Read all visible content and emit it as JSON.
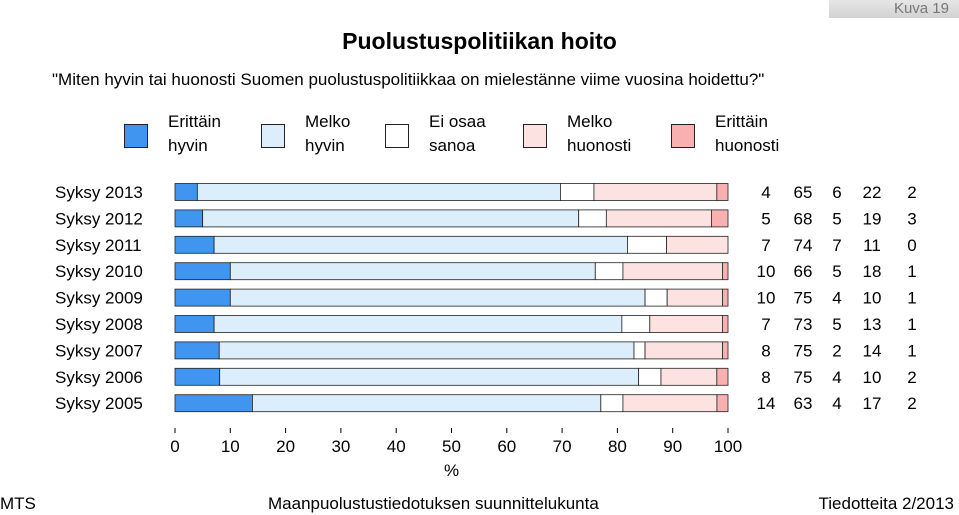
{
  "figure_label": "Kuva 19",
  "title": "Puolustuspolitiikan hoito",
  "question": "\"Miten hyvin tai huonosti Suomen puolustuspolitiikkaa on mielestänne viime vuosina hoidettu?\"",
  "legend": [
    {
      "line1": "Erittäin",
      "line2": "hyvin",
      "color": "#3f95f0"
    },
    {
      "line1": "Melko",
      "line2": "hyvin",
      "color": "#dcedfb"
    },
    {
      "line1": "Ei osaa",
      "line2": "sanoa",
      "color": "#ffffff"
    },
    {
      "line1": "Melko",
      "line2": "huonosti",
      "color": "#fde2e2"
    },
    {
      "line1": "Erittäin",
      "line2": "huonosti",
      "color": "#f8b0b0"
    }
  ],
  "footer": {
    "left": "MTS",
    "center": "Maanpuolustustiedotuksen suunnittelukunta",
    "right": "Tiedotteita 2/2013"
  },
  "chart_data": {
    "type": "bar",
    "orientation": "horizontal",
    "stacked": true,
    "categories": [
      "Syksy 2013",
      "Syksy 2012",
      "Syksy 2011",
      "Syksy 2010",
      "Syksy 2009",
      "Syksy 2008",
      "Syksy 2007",
      "Syksy 2006",
      "Syksy 2005"
    ],
    "series": [
      {
        "name": "Erittäin hyvin",
        "color": "#3f95f0",
        "values": [
          4,
          5,
          7,
          10,
          10,
          7,
          8,
          8,
          14
        ]
      },
      {
        "name": "Melko hyvin",
        "color": "#dcedfb",
        "values": [
          65,
          68,
          74,
          66,
          75,
          73,
          75,
          75,
          63
        ]
      },
      {
        "name": "Ei osaa sanoa",
        "color": "#ffffff",
        "values": [
          6,
          5,
          7,
          5,
          4,
          5,
          2,
          4,
          4
        ]
      },
      {
        "name": "Melko huonosti",
        "color": "#fde2e2",
        "values": [
          22,
          19,
          11,
          18,
          10,
          13,
          14,
          10,
          17
        ]
      },
      {
        "name": "Erittäin huonosti",
        "color": "#f8b0b0",
        "values": [
          2,
          3,
          0,
          1,
          1,
          1,
          1,
          2,
          2
        ]
      }
    ],
    "value_labels": [
      [
        "4",
        "65",
        "6",
        "22",
        "2"
      ],
      [
        "5",
        "68",
        "5",
        "19",
        "3"
      ],
      [
        "7",
        "74",
        "7",
        "11",
        "0"
      ],
      [
        "10",
        "66",
        "5",
        "18",
        "1"
      ],
      [
        "10",
        "75",
        "4",
        "10",
        "1"
      ],
      [
        "7",
        "73",
        "5",
        "13",
        "1"
      ],
      [
        "8",
        "75",
        "2",
        "14",
        "1"
      ],
      [
        "8",
        "75",
        "4",
        "10",
        "2"
      ],
      [
        "14",
        "63",
        "4",
        "17",
        "2"
      ]
    ],
    "xlabel": "%",
    "xlim": [
      0,
      100
    ],
    "xticks": [
      "0",
      "10",
      "20",
      "30",
      "40",
      "50",
      "60",
      "70",
      "80",
      "90",
      "100"
    ],
    "grid": false
  }
}
